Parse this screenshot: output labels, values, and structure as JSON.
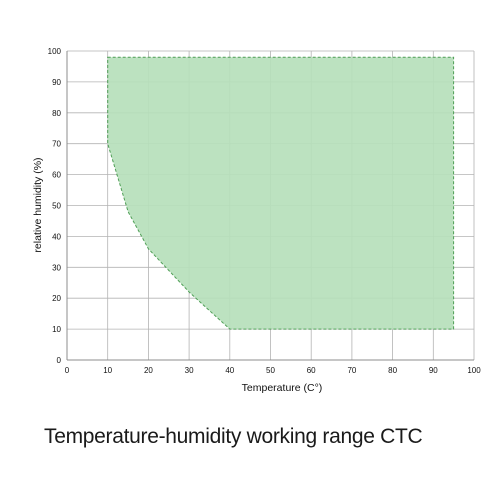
{
  "caption": "Temperature-humidity working range CTC",
  "chart_data": {
    "type": "area",
    "xlabel": "Temperature (C°)",
    "ylabel": "relative humidity (%)",
    "xlim": [
      0,
      100
    ],
    "ylim": [
      0,
      100
    ],
    "x_ticks": [
      "0",
      "10",
      "20",
      "30",
      "40",
      "50",
      "60",
      "70",
      "80",
      "90",
      "100"
    ],
    "y_ticks": [
      "0",
      "10",
      "20",
      "30",
      "40",
      "50",
      "60",
      "70",
      "80",
      "90",
      "100"
    ],
    "grid": true,
    "region": {
      "fill_color": "#b6dfbb",
      "border_color": "#4f9e56",
      "points": [
        {
          "x": 10,
          "y": 98
        },
        {
          "x": 95,
          "y": 98
        },
        {
          "x": 95,
          "y": 10
        },
        {
          "x": 40,
          "y": 10
        },
        {
          "x": 30,
          "y": 22
        },
        {
          "x": 20,
          "y": 36
        },
        {
          "x": 15,
          "y": 48
        },
        {
          "x": 10,
          "y": 70
        }
      ]
    }
  }
}
